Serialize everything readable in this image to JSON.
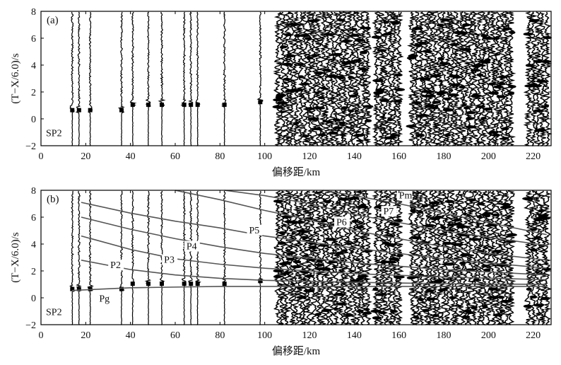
{
  "chart_data": [
    {
      "type": "line",
      "panel_label": "(a)",
      "shot_label": "SP2",
      "xlabel": "偏移距/km",
      "ylabel": "(T−X/6.0)/s",
      "xlim": [
        0,
        228
      ],
      "ylim": [
        -2,
        8
      ],
      "x_ticks": [
        "0",
        "20",
        "40",
        "60",
        "80",
        "100",
        "120",
        "140",
        "160",
        "180",
        "200",
        "220"
      ],
      "y_ticks": [
        "−2",
        "0",
        "2",
        "4",
        "6",
        "8"
      ],
      "grid": false,
      "trace_offsets_km": [
        14,
        17,
        22,
        36,
        41,
        48,
        54,
        64,
        67,
        70,
        82,
        98,
        106,
        108,
        110,
        112,
        114,
        116,
        118,
        120,
        122,
        124,
        126,
        128,
        130,
        132,
        134,
        136,
        138,
        140,
        142,
        144,
        146,
        150,
        152,
        154,
        156,
        158,
        160,
        166,
        168,
        170,
        172,
        174,
        176,
        178,
        180,
        182,
        184,
        186,
        188,
        190,
        192,
        194,
        196,
        198,
        200,
        202,
        204,
        206,
        208,
        210,
        218,
        220,
        222,
        224,
        226
      ],
      "picked_first_arrivals": [
        {
          "x": 14,
          "t": 0.6
        },
        {
          "x": 17,
          "t": 0.65
        },
        {
          "x": 22,
          "t": 0.7
        },
        {
          "x": 36,
          "t": 0.75
        },
        {
          "x": 41,
          "t": 0.8
        },
        {
          "x": 48,
          "t": 0.9
        },
        {
          "x": 54,
          "t": 0.95
        },
        {
          "x": 64,
          "t": 1.05
        },
        {
          "x": 67,
          "t": 1.05
        },
        {
          "x": 70,
          "t": 1.05
        },
        {
          "x": 82,
          "t": 1.0
        },
        {
          "x": 98,
          "t": 1.15
        }
      ]
    },
    {
      "type": "line",
      "panel_label": "(b)",
      "shot_label": "SP2",
      "xlabel": "偏移距/km",
      "ylabel": "(T−X/6.0)/s",
      "xlim": [
        0,
        228
      ],
      "ylim": [
        -2,
        8
      ],
      "x_ticks": [
        "0",
        "20",
        "40",
        "60",
        "80",
        "100",
        "120",
        "140",
        "160",
        "180",
        "200",
        "220"
      ],
      "y_ticks": [
        "−2",
        "0",
        "2",
        "4",
        "6",
        "8"
      ],
      "grid": false,
      "trace_offsets_km": [
        14,
        17,
        22,
        36,
        41,
        48,
        54,
        64,
        67,
        70,
        82,
        98,
        106,
        108,
        110,
        112,
        114,
        116,
        118,
        120,
        122,
        124,
        126,
        128,
        130,
        132,
        134,
        136,
        138,
        140,
        142,
        144,
        146,
        150,
        152,
        154,
        156,
        158,
        160,
        166,
        168,
        170,
        172,
        174,
        176,
        178,
        180,
        182,
        184,
        186,
        188,
        190,
        192,
        194,
        196,
        198,
        200,
        202,
        204,
        206,
        208,
        210,
        218,
        220,
        222,
        224,
        226
      ],
      "series": [
        {
          "name": "Pg",
          "x": [
            14,
            40,
            80,
            120,
            160,
            200,
            226
          ],
          "y": [
            0.55,
            0.75,
            0.85,
            0.85,
            0.85,
            0.85,
            0.85
          ]
        },
        {
          "name": "P2",
          "x": [
            18,
            40,
            60,
            80,
            100,
            140,
            180,
            226
          ],
          "y": [
            2.8,
            2.1,
            1.7,
            1.45,
            1.3,
            1.15,
            1.05,
            1.0
          ]
        },
        {
          "name": "P3",
          "x": [
            18,
            40,
            60,
            80,
            100,
            140,
            180,
            226
          ],
          "y": [
            4.6,
            3.6,
            2.9,
            2.5,
            2.2,
            1.8,
            1.55,
            1.35
          ]
        },
        {
          "name": "P4",
          "x": [
            18,
            40,
            60,
            80,
            100,
            140,
            180,
            226
          ],
          "y": [
            6.0,
            5.1,
            4.4,
            3.8,
            3.3,
            2.6,
            2.1,
            1.7
          ]
        },
        {
          "name": "P5",
          "x": [
            18,
            40,
            60,
            80,
            100,
            140,
            180,
            226
          ],
          "y": [
            7.1,
            6.3,
            5.7,
            5.2,
            4.6,
            3.7,
            2.9,
            2.2
          ]
        },
        {
          "name": "P6",
          "x": [
            60,
            80,
            100,
            120,
            140,
            160,
            180,
            200,
            226
          ],
          "y": [
            8.0,
            7.3,
            6.5,
            5.8,
            5.0,
            4.4,
            3.8,
            3.3,
            2.8
          ]
        },
        {
          "name": "P7",
          "x": [
            82,
            100,
            120,
            140,
            160,
            180,
            200,
            226
          ],
          "y": [
            8.0,
            7.6,
            7.0,
            6.2,
            5.6,
            5.0,
            4.5,
            3.9
          ]
        },
        {
          "name": "Pm",
          "x": [
            126,
            140,
            160,
            180,
            200,
            226
          ],
          "y": [
            8.0,
            7.6,
            7.0,
            6.3,
            5.6,
            4.7
          ]
        }
      ],
      "curve_labels": [
        {
          "text": "Pg",
          "x": 26,
          "y": -0.3
        },
        {
          "text": "P2",
          "x": 31,
          "y": 2.2
        },
        {
          "text": "P3",
          "x": 55,
          "y": 2.6
        },
        {
          "text": "P4",
          "x": 65,
          "y": 3.6
        },
        {
          "text": "P5",
          "x": 93,
          "y": 4.8
        },
        {
          "text": "P6",
          "x": 132,
          "y": 5.4
        },
        {
          "text": "P7",
          "x": 153,
          "y": 6.2
        },
        {
          "text": "Pm",
          "x": 160,
          "y": 7.4
        }
      ]
    }
  ]
}
